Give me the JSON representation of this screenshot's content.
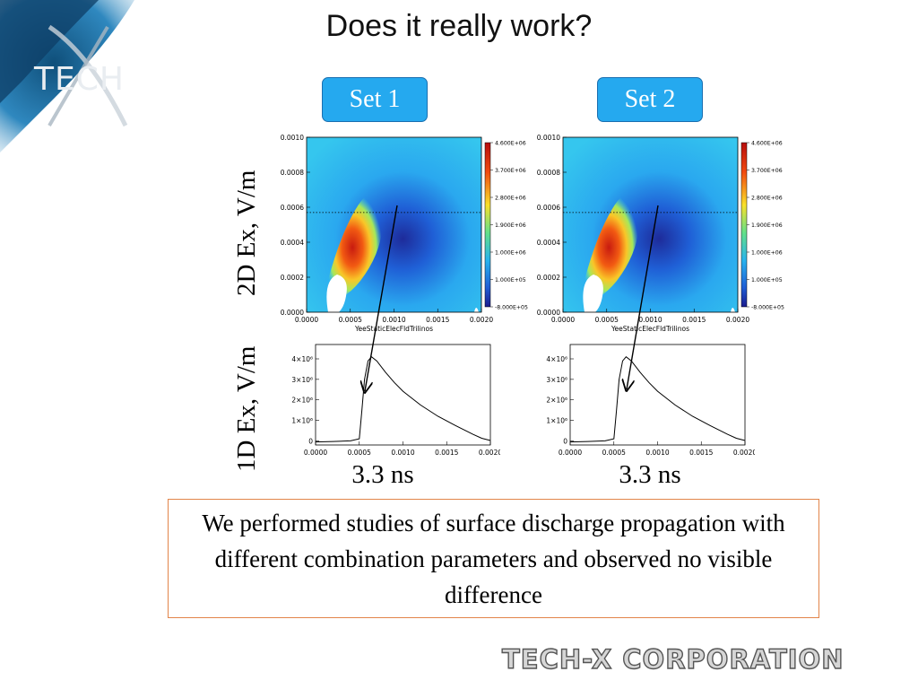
{
  "logo": {
    "text": "TECH"
  },
  "slide": {
    "title": "Does it really work?",
    "set1_label": "Set 1",
    "set2_label": "Set 2",
    "row_label_2d": "2D Ex, V/m",
    "row_label_1d": "1D Ex, V/m",
    "time1": "3.3 ns",
    "time2": "3.3 ns",
    "conclusion": "We performed studies of surface discharge propagation with different combination parameters and observed no visible difference"
  },
  "footer": {
    "company": "TECH-X CORPORATION"
  },
  "chart_data": [
    {
      "type": "heatmap",
      "panel": "Set 1",
      "xlabel": "YeeStaticElecFldTrilinos",
      "x_ticks": [
        "0.0000",
        "0.0005",
        "0.0010",
        "0.0015",
        "0.0020"
      ],
      "y_ticks": [
        "0.0000",
        "0.0002",
        "0.0004",
        "0.0006",
        "0.0008",
        "0.0010"
      ],
      "xlim": [
        0,
        0.002
      ],
      "ylim": [
        0,
        0.001
      ],
      "colorbar_ticks": [
        "4.600E+06",
        "3.700E+06",
        "2.800E+06",
        "1.900E+06",
        "1.000E+06",
        "1.000E+05",
        "-8.000E+05"
      ],
      "colorbar_range": [
        -800000,
        4600000
      ],
      "cut_line_y": 0.00057
    },
    {
      "type": "heatmap",
      "panel": "Set 2",
      "xlabel": "YeeStaticElecFldTrilinos",
      "x_ticks": [
        "0.0000",
        "0.0005",
        "0.0010",
        "0.0015",
        "0.0020"
      ],
      "y_ticks": [
        "0.0000",
        "0.0002",
        "0.0004",
        "0.0006",
        "0.0008",
        "0.0010"
      ],
      "xlim": [
        0,
        0.002
      ],
      "ylim": [
        0,
        0.001
      ],
      "colorbar_ticks": [
        "4.600E+06",
        "3.700E+06",
        "2.800E+06",
        "1.900E+06",
        "1.000E+06",
        "1.000E+05",
        "-8.000E+05"
      ],
      "colorbar_range": [
        -800000,
        4600000
      ],
      "cut_line_y": 0.00057
    },
    {
      "type": "line",
      "panel": "Set 1",
      "x_ticks": [
        "0.0000",
        "0.0005",
        "0.0010",
        "0.0015",
        "0.0020"
      ],
      "y_ticks": [
        "0",
        "1×10⁶",
        "2×10⁶",
        "3×10⁶",
        "4×10⁶"
      ],
      "xlim": [
        0,
        0.002
      ],
      "ylim": [
        -200000,
        4700000
      ],
      "x": [
        0,
        0.0002,
        0.0004,
        0.0005,
        0.00053,
        0.00056,
        0.0006,
        0.00064,
        0.0007,
        0.0008,
        0.0009,
        0.001,
        0.0012,
        0.0014,
        0.0016,
        0.0018,
        0.0019,
        0.002
      ],
      "y": [
        -50000,
        -30000,
        0,
        100000,
        1500000,
        3000000,
        3900000,
        4100000,
        3900000,
        3350000,
        2850000,
        2420000,
        1750000,
        1200000,
        750000,
        320000,
        130000,
        20000
      ]
    },
    {
      "type": "line",
      "panel": "Set 2",
      "x_ticks": [
        "0.0000",
        "0.0005",
        "0.0010",
        "0.0015",
        "0.0020"
      ],
      "y_ticks": [
        "0",
        "1×10⁶",
        "2×10⁶",
        "3×10⁶",
        "4×10⁶"
      ],
      "xlim": [
        0,
        0.002
      ],
      "ylim": [
        -200000,
        4700000
      ],
      "x": [
        0,
        0.0002,
        0.0004,
        0.0005,
        0.00053,
        0.00056,
        0.0006,
        0.00064,
        0.0007,
        0.0008,
        0.0009,
        0.001,
        0.0012,
        0.0014,
        0.0016,
        0.0018,
        0.0019,
        0.002
      ],
      "y": [
        -50000,
        -30000,
        0,
        100000,
        1500000,
        3000000,
        3900000,
        4100000,
        3900000,
        3350000,
        2850000,
        2420000,
        1750000,
        1200000,
        750000,
        320000,
        130000,
        20000
      ]
    }
  ]
}
